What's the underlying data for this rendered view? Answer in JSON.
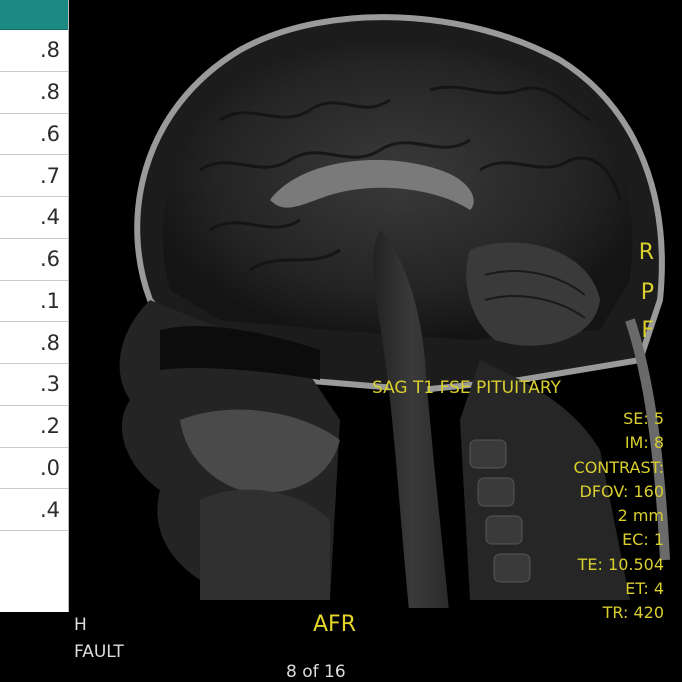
{
  "sheet": {
    "values": [
      ".8",
      ".8",
      ".6",
      ".7",
      ".4",
      ".6",
      ".1",
      ".8",
      ".3",
      ".2",
      ".0",
      ".4"
    ]
  },
  "overlay": {
    "orientation": [
      "R",
      "P",
      "F"
    ],
    "series_description": "SAG T1 FSE PITUITARY",
    "params": [
      "SE: 5",
      "IM: 8",
      "CONTRAST:",
      "DFOV: 160",
      "2 mm",
      "EC: 1",
      "TE: 10.504",
      "ET: 4",
      "TR: 420"
    ],
    "view_label": "AFR",
    "bottom_left_line1": "H",
    "bottom_left_line2": "FAULT",
    "image_counter": "8 of 16"
  },
  "colors": {
    "overlay_text": "#d8cf2e",
    "sheet_header": "#1b8a82"
  }
}
